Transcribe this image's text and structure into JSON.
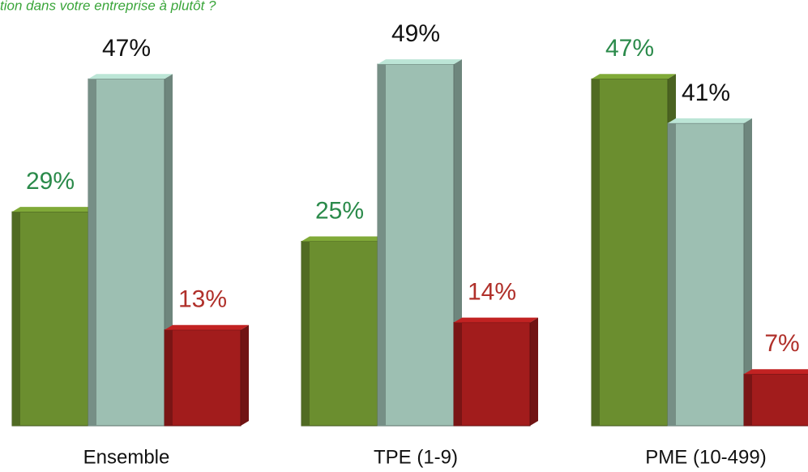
{
  "chart_data": {
    "type": "bar",
    "title": "tion dans votre entreprise à plutôt ?",
    "categories": [
      "Ensemble",
      "TPE (1-9)",
      "PME (10-499)"
    ],
    "series": [
      {
        "color": "#6b8e2f",
        "label_color": "#2a8a4a",
        "values": [
          29,
          25,
          47
        ],
        "value_labels": [
          "29%",
          "25%",
          "47%"
        ]
      },
      {
        "color": "#9dbfb2",
        "label_color": "#111111",
        "values": [
          47,
          49,
          41
        ],
        "value_labels": [
          "47%",
          "49%",
          "41%"
        ]
      },
      {
        "color": "#a21c1c",
        "label_color": "#b0302a",
        "values": [
          13,
          14,
          7
        ],
        "value_labels": [
          "13%",
          "14%",
          "7%"
        ]
      }
    ]
  }
}
